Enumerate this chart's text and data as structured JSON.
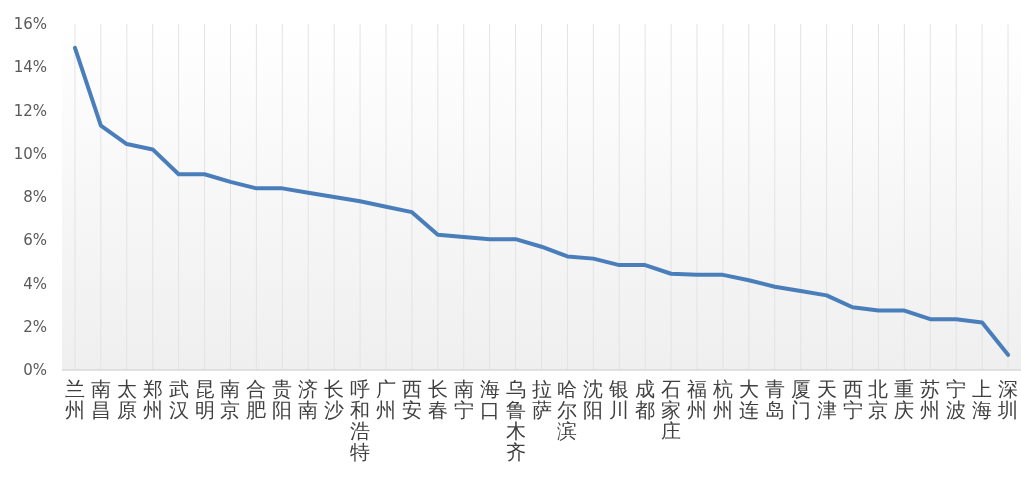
{
  "chart_data": {
    "type": "line",
    "categories": [
      "兰州",
      "南昌",
      "太原",
      "郑州",
      "武汉",
      "昆明",
      "南京",
      "合肥",
      "贵阳",
      "济南",
      "长沙",
      "呼和浩特",
      "广州",
      "西安",
      "长春",
      "南宁",
      "海口",
      "乌鲁木齐",
      "拉萨",
      "哈尔滨",
      "沈阳",
      "银川",
      "成都",
      "石家庄",
      "福州",
      "杭州",
      "大连",
      "青岛",
      "厦门",
      "天津",
      "西宁",
      "北京",
      "重庆",
      "苏州",
      "宁波",
      "上海",
      "深圳"
    ],
    "series": [
      {
        "color": "#4a7ebb",
        "values": [
          14.9,
          11.3,
          10.45,
          10.2,
          9.05,
          9.05,
          8.7,
          8.4,
          8.4,
          8.2,
          8.0,
          7.8,
          7.55,
          7.3,
          6.25,
          6.15,
          6.05,
          6.05,
          5.7,
          5.25,
          5.15,
          4.85,
          4.85,
          4.45,
          4.4,
          4.4,
          4.15,
          3.85,
          3.65,
          3.45,
          2.9,
          2.75,
          2.75,
          2.35,
          2.35,
          2.2,
          0.7
        ]
      }
    ],
    "ylim": [
      0,
      16
    ],
    "yticks": [
      {
        "value": 0,
        "label": "0%"
      },
      {
        "value": 2,
        "label": "2%"
      },
      {
        "value": 4,
        "label": "4%"
      },
      {
        "value": 6,
        "label": "6%"
      },
      {
        "value": 8,
        "label": "8%"
      },
      {
        "value": 10,
        "label": "10%"
      },
      {
        "value": 12,
        "label": "12%"
      },
      {
        "value": 14,
        "label": "14%"
      },
      {
        "value": 16,
        "label": "16%"
      }
    ],
    "grid": "x",
    "marker": "none",
    "line_style": "solid"
  }
}
